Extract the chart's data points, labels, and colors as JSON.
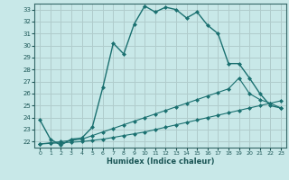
{
  "title": "",
  "xlabel": "Humidex (Indice chaleur)",
  "bg_color": "#c8e8e8",
  "grid_color": "#b0cccc",
  "line_color": "#1a7070",
  "spine_color": "#336666",
  "tick_color": "#1a5555",
  "xlim": [
    -0.5,
    23.5
  ],
  "ylim": [
    21.5,
    33.5
  ],
  "xticks": [
    0,
    1,
    2,
    3,
    4,
    5,
    6,
    7,
    8,
    9,
    10,
    11,
    12,
    13,
    14,
    15,
    16,
    17,
    18,
    19,
    20,
    21,
    22,
    23
  ],
  "yticks": [
    22,
    23,
    24,
    25,
    26,
    27,
    28,
    29,
    30,
    31,
    32,
    33
  ],
  "line1_x": [
    0,
    1,
    2,
    3,
    4,
    5,
    6,
    7,
    8,
    9,
    10,
    11,
    12,
    13,
    14,
    15,
    16,
    17,
    18,
    19,
    20,
    21,
    22,
    23
  ],
  "line1_y": [
    23.8,
    22.2,
    21.7,
    22.2,
    22.3,
    23.2,
    26.5,
    30.2,
    29.3,
    31.8,
    33.3,
    32.8,
    33.2,
    33.0,
    32.3,
    32.8,
    31.7,
    31.0,
    28.5,
    28.5,
    27.3,
    26.0,
    25.0,
    24.8
  ],
  "line2_x": [
    0,
    1,
    2,
    3,
    4,
    5,
    6,
    7,
    8,
    9,
    10,
    11,
    12,
    13,
    14,
    15,
    16,
    17,
    18,
    19,
    20,
    21,
    22,
    23
  ],
  "line2_y": [
    21.8,
    21.9,
    22.0,
    22.1,
    22.2,
    22.5,
    22.8,
    23.1,
    23.4,
    23.7,
    24.0,
    24.3,
    24.6,
    24.9,
    25.2,
    25.5,
    25.8,
    26.1,
    26.4,
    27.3,
    26.0,
    25.5,
    25.2,
    24.8
  ],
  "line3_x": [
    0,
    1,
    2,
    3,
    4,
    5,
    6,
    7,
    8,
    9,
    10,
    11,
    12,
    13,
    14,
    15,
    16,
    17,
    18,
    19,
    20,
    21,
    22,
    23
  ],
  "line3_y": [
    21.8,
    21.85,
    21.9,
    21.95,
    22.0,
    22.1,
    22.2,
    22.35,
    22.5,
    22.65,
    22.8,
    23.0,
    23.2,
    23.4,
    23.6,
    23.8,
    24.0,
    24.2,
    24.4,
    24.6,
    24.8,
    25.0,
    25.2,
    25.4
  ]
}
